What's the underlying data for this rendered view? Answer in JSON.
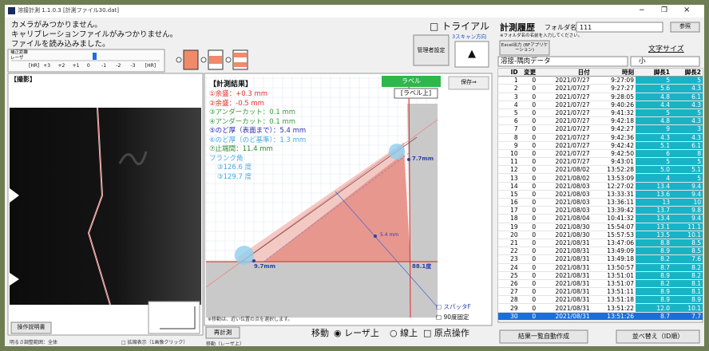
{
  "window": {
    "title": "溶接計測 1.1.0.3 [計測ファイル30.dat]",
    "controls": [
      "−",
      "❐",
      "×"
    ]
  },
  "messages": [
    "カメラがみつかりません。",
    "キャリブレーションファイルがみつかりません。",
    "ファイルを読み込みました。"
  ],
  "laser": {
    "label1": "補正距離",
    "label2": "レーザ",
    "scale": [
      "[HR]",
      "+3",
      "+2",
      "+1",
      "0",
      "-1",
      "-2",
      "-3",
      "[HR]"
    ]
  },
  "trial": "□ トライアル",
  "scan_direction": "3スキャン方向",
  "admin_button": "管理者設定",
  "arrow_button": "▲",
  "camera": {
    "header": "【撮影】",
    "manual_button": "操作説明書",
    "brightness": "明るさ調整範囲：全体",
    "zoom": "□ 拡縮表示（1画像クリック）"
  },
  "measurement": {
    "header": "【計測結果】",
    "items": [
      {
        "text": "①余盛：+0.3 mm",
        "color": "#e0302a"
      },
      {
        "text": "②余盛：-0.5 mm",
        "color": "#e0302a"
      },
      {
        "text": "③アンダーカット：0.1 mm",
        "color": "#3a9a3a"
      },
      {
        "text": "④アンダーカット：0.1 mm",
        "color": "#3a9a3a"
      },
      {
        "text": "⑤のど厚（表面まで）：5.4 mm",
        "color": "#2a2ab0"
      },
      {
        "text": "⑥のど厚（のど基準）：1.3 mm",
        "color": "#4aa8e0"
      },
      {
        "text": "⑦止端間：11.4 mm",
        "color": "#2e8b2e"
      },
      {
        "text": "フランク角",
        "color": "#4aa8e0"
      },
      {
        "text": "③126.6 度",
        "color": "#4aa8e0"
      },
      {
        "text": "③129.7 度",
        "color": "#4aa8e0"
      }
    ],
    "label_button": "ラベル",
    "label_position": "[ラベル上]",
    "save_button": "保存⇒",
    "annotations": [
      "7.7mm",
      "9.7mm",
      "88.1度",
      "5.4 mm"
    ],
    "spatter": "□ スパッタF",
    "fixed90": "□ 90度固定",
    "note": "※移動は、近い位置の点を選択します。",
    "remeasure": "再計測",
    "move_status": "移動（レーザ上）",
    "move_label": "移動",
    "move_options": [
      "◉ レーザ上",
      "○ 線上",
      "□ 原点操作"
    ]
  },
  "history": {
    "title": "計測履歴",
    "folder_label": "フォルダ名",
    "folder_value": "111",
    "browse": "参照",
    "note": "※フォルダ名の名前を入力してください。",
    "excel": "Excel出力 (BFアプリケーション)",
    "font_size_label": "文字サイズ",
    "data_type": "溶接-隅肉データ",
    "font_size": "小",
    "columns": [
      "ID",
      "変更",
      "日付",
      "時刻",
      "脚長1",
      "脚長2"
    ],
    "rows": [
      [
        "1",
        "0",
        "2021/07/27",
        "9:27:09",
        "5",
        "5"
      ],
      [
        "2",
        "0",
        "2021/07/27",
        "9:27:27",
        "5.6",
        "4.3"
      ],
      [
        "3",
        "0",
        "2021/07/27",
        "9:28:05",
        "4.8",
        "6.1"
      ],
      [
        "4",
        "0",
        "2021/07/27",
        "9:40:26",
        "4.4",
        "4.3"
      ],
      [
        "5",
        "0",
        "2021/07/27",
        "9:41:32",
        "5",
        "5"
      ],
      [
        "6",
        "0",
        "2021/07/27",
        "9:42:18",
        "4.8",
        "4.3"
      ],
      [
        "7",
        "0",
        "2021/07/27",
        "9:42:27",
        "9",
        "3"
      ],
      [
        "8",
        "0",
        "2021/07/27",
        "9:42:36",
        "4.3",
        "4.3"
      ],
      [
        "9",
        "0",
        "2021/07/27",
        "9:42:42",
        "5.1",
        "6.1"
      ],
      [
        "10",
        "0",
        "2021/07/27",
        "9:42:50",
        "6",
        "8"
      ],
      [
        "11",
        "0",
        "2021/07/27",
        "9:43:01",
        "5",
        "5"
      ],
      [
        "12",
        "0",
        "2021/08/02",
        "13:52:28",
        "5.0",
        "5.1"
      ],
      [
        "13",
        "0",
        "2021/08/02",
        "13:53:09",
        "4",
        "5"
      ],
      [
        "14",
        "0",
        "2021/08/03",
        "12:27:02",
        "13.4",
        "9.4"
      ],
      [
        "15",
        "0",
        "2021/08/03",
        "13:33:31",
        "13.6",
        "9.4"
      ],
      [
        "16",
        "0",
        "2021/08/03",
        "13:36:11",
        "13",
        "10"
      ],
      [
        "17",
        "0",
        "2021/08/03",
        "13:39:42",
        "13.7",
        "9.8"
      ],
      [
        "18",
        "0",
        "2021/08/04",
        "10:41:32",
        "13.4",
        "9.4"
      ],
      [
        "19",
        "0",
        "2021/08/30",
        "15:54:07",
        "13.1",
        "11.1"
      ],
      [
        "20",
        "0",
        "2021/08/30",
        "15:57:53",
        "13.5",
        "10.1"
      ],
      [
        "21",
        "0",
        "2021/08/31",
        "13:47:06",
        "8.8",
        "8.5"
      ],
      [
        "22",
        "0",
        "2021/08/31",
        "13:49:09",
        "8.9",
        "8.5"
      ],
      [
        "23",
        "0",
        "2021/08/31",
        "13:49:18",
        "8.2",
        "7.6"
      ],
      [
        "24",
        "0",
        "2021/08/31",
        "13:50:57",
        "8.7",
        "8.2"
      ],
      [
        "25",
        "0",
        "2021/08/31",
        "13:51:01",
        "8.9",
        "8.2"
      ],
      [
        "26",
        "0",
        "2021/08/31",
        "13:51:07",
        "8.2",
        "8.1"
      ],
      [
        "27",
        "0",
        "2021/08/31",
        "13:51:11",
        "8.9",
        "8.1"
      ],
      [
        "28",
        "0",
        "2021/08/31",
        "13:51:18",
        "8.9",
        "8.9"
      ],
      [
        "29",
        "0",
        "2021/08/31",
        "13:51:22",
        "12.0",
        "10.1"
      ],
      [
        "30",
        "0",
        "2021/08/31",
        "13:51:26",
        "8.7",
        "7.7"
      ]
    ],
    "auto_list": "結果一覧自動作成",
    "sort": "並べ替え（ID順）"
  }
}
